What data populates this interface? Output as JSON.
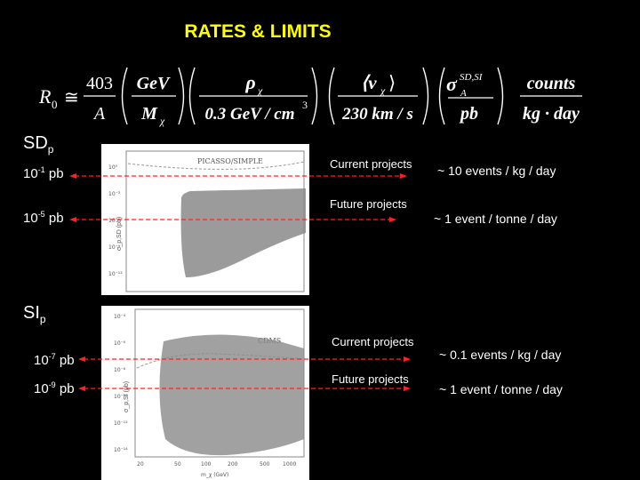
{
  "title": "RATES & LIMITS",
  "formula": {
    "lhs": "R",
    "lhs_sub": "0",
    "approx": "≅",
    "t1_num": "403",
    "t1_den": "A",
    "t2_num": "GeV",
    "t2_den": "M",
    "t2_den_sub": "χ",
    "t3_num": "ρ",
    "t3_num_sub": "χ",
    "t3_den": "0.3 GeV / cm",
    "t3_den_sup": "3",
    "t4_num": "⟨v",
    "t4_num_sub": "χ",
    "t4_num_close": "⟩",
    "t4_den": "230 km / s",
    "t5_num": "σ",
    "t5_num_sub": "A",
    "t5_num_sup": "SD,SI",
    "t5_den": "pb",
    "t6_num": "counts",
    "t6_den": "kg · day"
  },
  "sd": {
    "label": "SD",
    "label_sub": "p",
    "plot_legend": "PICASSO/SIMPLE",
    "lines": [
      {
        "prefix": "10",
        "exp": "-1",
        "unit": "pb",
        "project": "Current projects",
        "rate": "~ 10 events / kg / day"
      },
      {
        "prefix": "10",
        "exp": "-5",
        "unit": "pb",
        "project": "Future projects",
        "rate": "~ 1 event / tonne / day"
      }
    ],
    "y_ticks": [
      "10⁰",
      "10⁻³",
      "10⁻⁶",
      "10⁻⁹",
      "10⁻¹²"
    ],
    "y_axis": "σ_p,SD (pb)"
  },
  "si": {
    "label": "SI",
    "label_sub": "p",
    "plot_legend": "CDMS",
    "lines": [
      {
        "prefix": "10",
        "exp": "-7",
        "unit": "pb",
        "project": "Current projects",
        "rate": "~ 0.1 events / kg / day"
      },
      {
        "prefix": "10",
        "exp": "-9",
        "unit": "pb",
        "project": "Future projects",
        "rate": "~ 1 event / tonne / day"
      }
    ],
    "y_ticks": [
      "10⁻⁴",
      "10⁻⁶",
      "10⁻⁸",
      "10⁻¹⁰",
      "10⁻¹²",
      "10⁻¹⁴"
    ],
    "y_axis": "σ_p,SI (pb)",
    "x_ticks": [
      "20",
      "50",
      "100",
      "200",
      "500",
      "1000"
    ],
    "x_axis": "m_χ (GeV)"
  },
  "colors": {
    "title": "#ffff00",
    "arrow": "#ff2020",
    "background": "#000000",
    "scatter": "#8a8a8a"
  }
}
